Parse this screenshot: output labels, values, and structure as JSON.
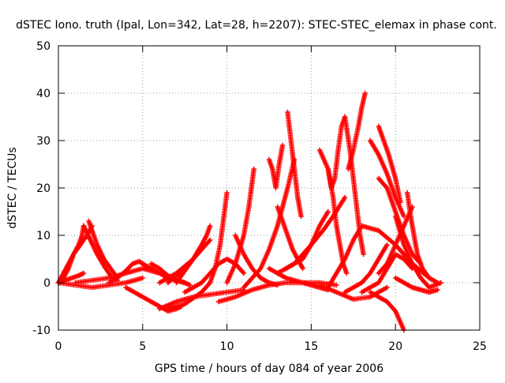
{
  "chart_data": {
    "type": "scatter",
    "title": "dSTEC Iono. truth (Ipal, Lon=342, Lat=28, h=2207): STEC-STEC_elemax in phase cont.",
    "xlabel": "GPS time / hours of day 084 of year 2006",
    "ylabel": "dSTEC  / TECUs",
    "xlim": [
      0,
      25
    ],
    "ylim": [
      -10,
      50
    ],
    "xticks": [
      0,
      5,
      10,
      15,
      20,
      25
    ],
    "yticks": [
      -10,
      0,
      10,
      20,
      30,
      40,
      50
    ],
    "grid": true,
    "legend": "none",
    "marker": "plus",
    "colors": {
      "series": "#ff0000",
      "grid": "#a0a0a0",
      "axes": "#000000"
    },
    "series": [
      {
        "x": [
          0.0,
          0.3,
          0.6,
          0.9,
          1.1,
          1.3,
          1.5,
          1.7,
          2.0
        ],
        "y": [
          0.0,
          2.0,
          4.0,
          6.0,
          7.0,
          8.0,
          9.0,
          10.0,
          12.0
        ]
      },
      {
        "x": [
          0.0,
          0.4,
          0.8,
          1.2,
          1.5
        ],
        "y": [
          0.0,
          0.5,
          1.0,
          1.5,
          2.0
        ]
      },
      {
        "x": [
          0.0,
          0.3,
          0.6,
          0.9,
          1.2,
          1.4,
          1.5
        ],
        "y": [
          0.0,
          1.0,
          3.0,
          6.0,
          8.0,
          10.0,
          12.0
        ]
      },
      {
        "x": [
          1.5,
          1.9,
          2.3,
          2.8,
          3.2,
          3.5
        ],
        "y": [
          12.0,
          9.0,
          6.0,
          3.0,
          1.0,
          0.5
        ]
      },
      {
        "x": [
          1.8,
          2.0,
          2.3,
          2.7,
          3.1,
          3.4
        ],
        "y": [
          13.0,
          11.0,
          8.0,
          5.0,
          3.0,
          1.5
        ]
      },
      {
        "x": [
          0.0,
          1.0,
          2.0,
          3.0,
          4.0,
          5.0
        ],
        "y": [
          0.0,
          -0.5,
          -1.0,
          -0.5,
          0.0,
          1.0
        ]
      },
      {
        "x": [
          1.0,
          2.0,
          3.0,
          4.0,
          5.0,
          6.0,
          7.0
        ],
        "y": [
          0.0,
          0.5,
          1.0,
          2.0,
          3.0,
          2.0,
          0.5
        ]
      },
      {
        "x": [
          3.0,
          3.5,
          4.0,
          4.4,
          4.8,
          5.0
        ],
        "y": [
          0.0,
          1.0,
          2.5,
          4.0,
          4.5,
          4.0
        ]
      },
      {
        "x": [
          5.0,
          5.5,
          6.0,
          6.5,
          7.0,
          7.5
        ],
        "y": [
          4.0,
          3.0,
          2.0,
          1.0,
          0.5,
          0.0
        ]
      },
      {
        "x": [
          5.5,
          6.0,
          6.5,
          7.0,
          7.5,
          7.8
        ],
        "y": [
          4.0,
          3.0,
          1.5,
          0.5,
          0.0,
          -0.5
        ]
      },
      {
        "x": [
          4.0,
          5.0,
          6.0,
          6.5,
          7.0,
          7.3
        ],
        "y": [
          -1.0,
          -3.0,
          -5.0,
          -6.0,
          -5.5,
          -5.0
        ]
      },
      {
        "x": [
          6.0,
          6.5,
          7.0,
          7.5,
          8.0,
          8.5,
          9.0
        ],
        "y": [
          0.0,
          1.0,
          2.0,
          3.5,
          5.0,
          7.0,
          9.0
        ]
      },
      {
        "x": [
          6.5,
          7.0,
          7.5,
          8.0,
          8.5,
          8.8,
          9.0
        ],
        "y": [
          0.0,
          1.5,
          3.0,
          5.0,
          8.0,
          10.0,
          12.0
        ]
      },
      {
        "x": [
          7.0,
          7.3,
          7.6,
          7.9,
          8.1,
          8.3
        ],
        "y": [
          0.0,
          1.5,
          3.0,
          4.5,
          5.5,
          6.5
        ]
      },
      {
        "x": [
          6.5,
          7.5,
          8.5,
          9.0,
          9.3,
          9.6,
          10.0
        ],
        "y": [
          -5.5,
          -4.5,
          -2.0,
          0.0,
          3.0,
          8.0,
          19.0
        ]
      },
      {
        "x": [
          6.0,
          7.0,
          8.0,
          9.0,
          10.0,
          11.0
        ],
        "y": [
          -5.5,
          -4.0,
          -3.0,
          -2.5,
          -2.0,
          -1.5
        ]
      },
      {
        "x": [
          7.5,
          8.5,
          9.0,
          9.5,
          10.0,
          10.5,
          11.0
        ],
        "y": [
          -2.0,
          0.0,
          2.0,
          4.0,
          5.0,
          4.0,
          2.0
        ]
      },
      {
        "x": [
          9.5,
          10.5,
          11.5,
          12.5,
          13.5,
          14.5,
          15.5,
          16.5
        ],
        "y": [
          -4.0,
          -3.0,
          -1.5,
          -0.5,
          0.0,
          0.0,
          0.0,
          -0.5
        ]
      },
      {
        "x": [
          10.5,
          11.0,
          11.5,
          12.0,
          12.5,
          13.0
        ],
        "y": [
          10.0,
          6.0,
          3.0,
          1.0,
          0.0,
          -0.5
        ]
      },
      {
        "x": [
          10.0,
          10.5,
          11.0,
          11.3,
          11.6
        ],
        "y": [
          0.0,
          4.0,
          10.0,
          16.0,
          24.0
        ]
      },
      {
        "x": [
          11.0,
          12.0,
          12.5,
          13.0,
          13.3,
          13.6,
          14.0
        ],
        "y": [
          -1.0,
          3.0,
          7.0,
          12.0,
          16.0,
          20.0,
          26.0
        ]
      },
      {
        "x": [
          12.5,
          12.7,
          12.9,
          13.1,
          13.3
        ],
        "y": [
          26.0,
          24.0,
          20.0,
          25.0,
          29.0
        ]
      },
      {
        "x": [
          13.0,
          13.3,
          13.6,
          13.9,
          14.2,
          14.5
        ],
        "y": [
          16.0,
          13.0,
          10.0,
          7.0,
          5.0,
          3.0
        ]
      },
      {
        "x": [
          13.6,
          13.8,
          14.0,
          14.2,
          14.4
        ],
        "y": [
          36.0,
          30.0,
          24.0,
          18.0,
          14.0
        ]
      },
      {
        "x": [
          13.5,
          14.0,
          14.5,
          15.0,
          15.5,
          16.0
        ],
        "y": [
          3.0,
          4.0,
          5.0,
          8.0,
          12.0,
          15.0
        ]
      },
      {
        "x": [
          12.5,
          13.5,
          14.5,
          15.0,
          15.5,
          16.0
        ],
        "y": [
          3.0,
          1.0,
          0.0,
          -0.5,
          -1.0,
          -1.5
        ]
      },
      {
        "x": [
          13.0,
          14.0,
          15.0,
          15.7,
          16.3,
          17.0
        ],
        "y": [
          2.0,
          4.0,
          8.0,
          11.0,
          14.0,
          18.0
        ]
      },
      {
        "x": [
          15.5,
          16.0,
          16.2,
          16.4,
          16.6,
          16.8,
          17.0
        ],
        "y": [
          28.0,
          24.0,
          20.0,
          22.0,
          28.0,
          33.0,
          35.0
        ]
      },
      {
        "x": [
          16.0,
          16.3,
          16.5,
          16.7,
          16.9,
          17.1
        ],
        "y": [
          24.0,
          18.0,
          12.0,
          8.0,
          4.0,
          2.0
        ]
      },
      {
        "x": [
          17.0,
          17.3,
          17.5,
          17.7,
          17.9,
          18.1
        ],
        "y": [
          35.0,
          28.0,
          22.0,
          16.0,
          10.0,
          6.0
        ]
      },
      {
        "x": [
          17.2,
          17.5,
          17.8,
          18.0,
          18.2
        ],
        "y": [
          24.0,
          28.0,
          33.0,
          37.0,
          40.0
        ]
      },
      {
        "x": [
          16.0,
          16.5,
          17.0,
          17.5,
          18.0
        ],
        "y": [
          -1.0,
          2.0,
          5.0,
          9.0,
          12.0
        ]
      },
      {
        "x": [
          17.0,
          17.5,
          18.0,
          18.5,
          19.0,
          19.5
        ],
        "y": [
          -2.0,
          -1.0,
          0.0,
          2.0,
          5.0,
          8.0
        ]
      },
      {
        "x": [
          15.5,
          16.5,
          17.5,
          18.5,
          19.5
        ],
        "y": [
          -0.5,
          -2.0,
          -3.5,
          -3.0,
          -1.0
        ]
      },
      {
        "x": [
          18.0,
          18.5,
          19.0,
          19.5,
          20.0,
          20.5,
          21.0
        ],
        "y": [
          -2.0,
          -1.0,
          0.0,
          3.0,
          6.0,
          5.0,
          3.0
        ]
      },
      {
        "x": [
          18.5,
          19.0,
          19.5,
          20.0,
          20.5
        ],
        "y": [
          30.0,
          27.0,
          23.0,
          18.0,
          14.0
        ]
      },
      {
        "x": [
          19.0,
          19.3,
          19.6,
          20.0,
          20.3
        ],
        "y": [
          33.0,
          30.0,
          27.0,
          22.0,
          17.0
        ]
      },
      {
        "x": [
          20.0,
          20.5,
          21.0,
          21.5,
          22.0,
          22.7
        ],
        "y": [
          14.0,
          8.0,
          4.0,
          1.0,
          -1.0,
          0.0
        ]
      },
      {
        "x": [
          18.5,
          19.0,
          19.5,
          20.0,
          20.5
        ],
        "y": [
          -2.0,
          -3.0,
          -4.0,
          -6.0,
          -10.0
        ]
      },
      {
        "x": [
          19.0,
          19.5,
          20.0,
          20.5,
          21.0
        ],
        "y": [
          2.0,
          4.0,
          8.0,
          12.0,
          16.0
        ]
      },
      {
        "x": [
          20.7,
          20.9,
          21.1,
          21.3,
          21.6,
          22.0,
          22.5
        ],
        "y": [
          19.0,
          14.0,
          10.0,
          6.0,
          3.0,
          1.0,
          0.0
        ]
      },
      {
        "x": [
          20.0,
          20.5,
          21.0,
          21.5,
          22.0,
          22.5
        ],
        "y": [
          1.0,
          0.0,
          -1.0,
          -1.5,
          -2.0,
          -1.5
        ]
      },
      {
        "x": [
          18.0,
          19.0,
          20.0,
          21.0,
          22.0
        ],
        "y": [
          12.0,
          11.0,
          8.0,
          4.0,
          1.0
        ]
      },
      {
        "x": [
          19.0,
          19.5,
          20.0,
          20.5,
          21.0,
          21.5
        ],
        "y": [
          22.0,
          20.0,
          15.0,
          10.0,
          6.0,
          4.0
        ]
      }
    ]
  }
}
